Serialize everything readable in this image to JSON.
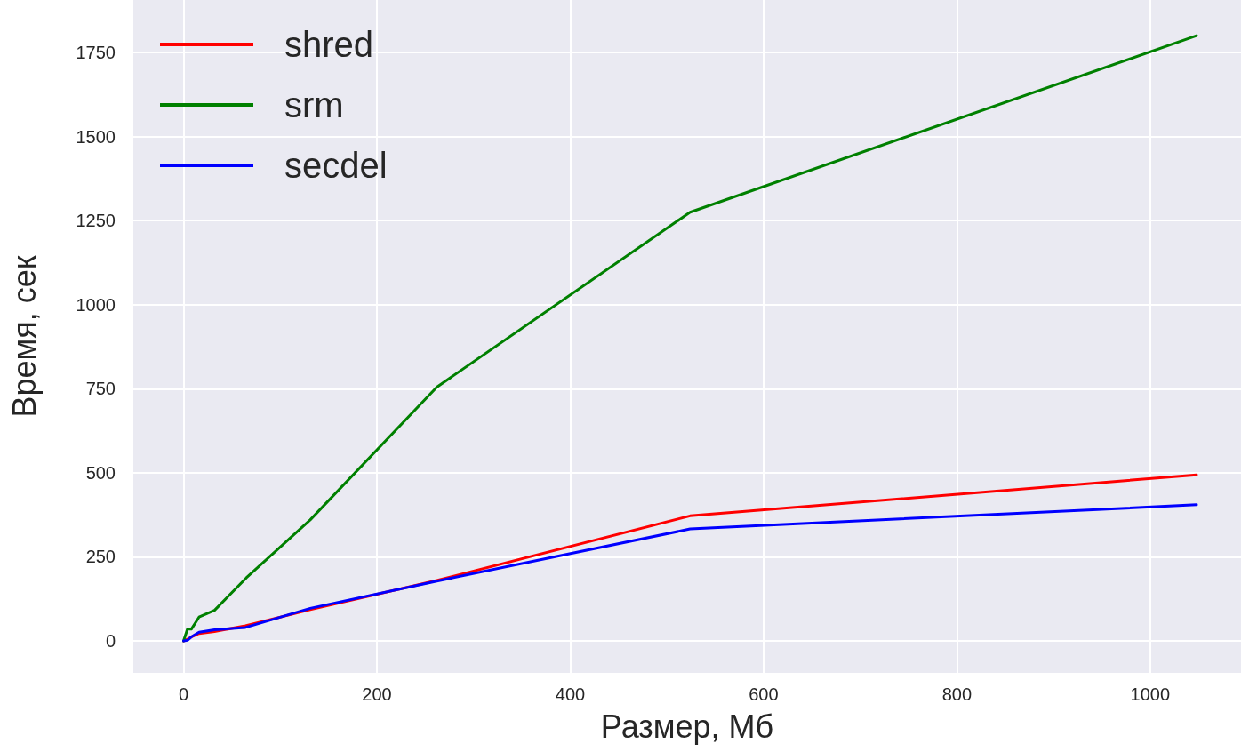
{
  "chart_data": {
    "type": "line",
    "xlabel": "Размер, Мб",
    "ylabel": "Время, сек",
    "xlim": [
      -52,
      1094
    ],
    "xticks": [
      0,
      200,
      400,
      600,
      800,
      1000
    ],
    "ylim": [
      -95,
      1906
    ],
    "yticks": [
      0,
      250,
      500,
      750,
      1000,
      1250,
      1500,
      1750
    ],
    "grid": true,
    "legend": "top left",
    "marker": "none",
    "line_style": "solid",
    "series": [
      {
        "name": "shred",
        "color": "#ff0000",
        "x": [
          0,
          4,
          8,
          16,
          32,
          64,
          131,
          262,
          524,
          1048
        ],
        "values": [
          0,
          5,
          12,
          22,
          28,
          45,
          93,
          180,
          372,
          494
        ]
      },
      {
        "name": "srm",
        "color": "#008000",
        "x": [
          0,
          4,
          8,
          16,
          32,
          65,
          131,
          262,
          524,
          1048
        ],
        "values": [
          0,
          35,
          35,
          71,
          91,
          188,
          360,
          755,
          1275,
          1800
        ]
      },
      {
        "name": "secdel",
        "color": "#0000ff",
        "x": [
          0,
          4,
          8,
          16,
          32,
          64,
          131,
          262,
          524,
          1048
        ],
        "values": [
          0,
          2,
          12,
          26,
          33,
          40,
          97,
          178,
          333,
          405
        ]
      }
    ]
  }
}
